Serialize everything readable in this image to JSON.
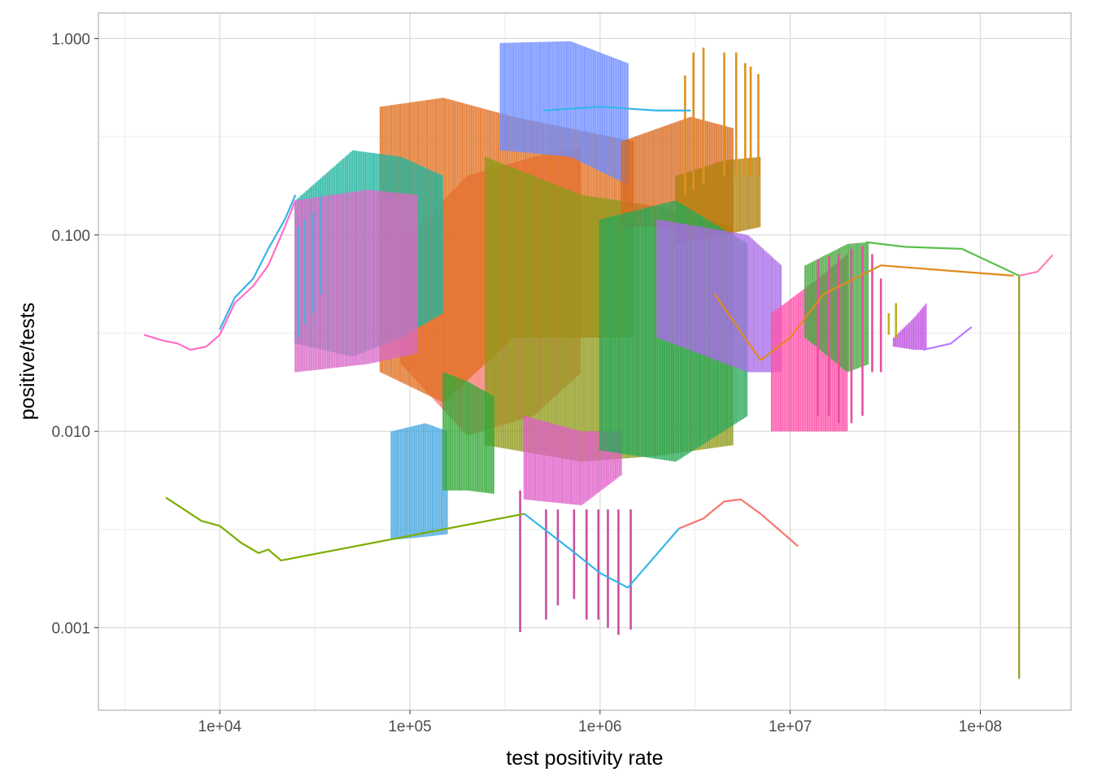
{
  "chart_data": {
    "type": "line",
    "xlabel": "test positivity rate",
    "ylabel": "positive/tests",
    "x_scale": "log10",
    "y_scale": "log10",
    "xlim": [
      2300,
      300000000
    ],
    "ylim": [
      0.00038,
      1.35
    ],
    "x_ticks": [
      10000,
      100000,
      1000000,
      10000000,
      100000000
    ],
    "x_tick_labels": [
      "1e+04",
      "1e+05",
      "1e+06",
      "1e+07",
      "1e+08"
    ],
    "y_ticks": [
      0.001,
      0.01,
      0.1,
      1
    ],
    "y_tick_labels": [
      "0.001",
      "0.010",
      "0.100",
      "1.000"
    ],
    "grid": true,
    "legend": "none",
    "colors": {
      "panel_border": "#b3b3b3",
      "grid_major": "#d9d9d9",
      "grid_minor": "#ececec",
      "tick_text": "#4d4d4d"
    },
    "series": [
      {
        "color": "#ff6ec7",
        "points": [
          [
            4000,
            0.031
          ],
          [
            5000,
            0.029
          ],
          [
            6000,
            0.028
          ],
          [
            7000,
            0.026
          ],
          [
            8500,
            0.027
          ],
          [
            10000,
            0.031
          ],
          [
            12000,
            0.045
          ],
          [
            15000,
            0.055
          ],
          [
            18000,
            0.07
          ],
          [
            22000,
            0.11
          ],
          [
            25000,
            0.15
          ]
        ]
      },
      {
        "color": "#35b6e8",
        "points": [
          [
            10000,
            0.033
          ],
          [
            12000,
            0.048
          ],
          [
            15000,
            0.06
          ],
          [
            18000,
            0.085
          ],
          [
            22000,
            0.12
          ],
          [
            25000,
            0.16
          ]
        ]
      },
      {
        "color": "#7cae00",
        "points": [
          [
            5200,
            0.0046
          ],
          [
            6000,
            0.0042
          ],
          [
            8000,
            0.0035
          ],
          [
            10000,
            0.0033
          ],
          [
            13000,
            0.0027
          ],
          [
            16000,
            0.0024
          ],
          [
            18000,
            0.0025
          ],
          [
            21000,
            0.0022
          ],
          [
            400000,
            0.0038
          ]
        ]
      },
      {
        "color": "#35b6e8",
        "points": [
          [
            400000,
            0.0038
          ],
          [
            700000,
            0.0025
          ],
          [
            1000000,
            0.0019
          ],
          [
            1400000,
            0.0016
          ],
          [
            2600000,
            0.0032
          ]
        ]
      },
      {
        "color": "#f8766d",
        "points": [
          [
            2600000,
            0.0032
          ],
          [
            3500000,
            0.0036
          ],
          [
            4500000,
            0.0044
          ],
          [
            5500000,
            0.0045
          ],
          [
            7000000,
            0.0038
          ],
          [
            11000000,
            0.0026
          ]
        ]
      },
      {
        "color": "#35b6e8",
        "points": [
          [
            500000,
            0.43
          ],
          [
            1000000,
            0.45
          ],
          [
            2000000,
            0.43
          ],
          [
            3000000,
            0.43
          ]
        ]
      },
      {
        "color": "#5bbf4e",
        "points": [
          [
            25000000,
            0.092
          ],
          [
            40000000,
            0.087
          ],
          [
            80000000,
            0.085
          ],
          [
            160000000,
            0.062
          ]
        ]
      },
      {
        "color": "#ff80b8",
        "points": [
          [
            160000000,
            0.062
          ],
          [
            200000000,
            0.065
          ],
          [
            240000000,
            0.079
          ]
        ]
      },
      {
        "color": "#b57cff",
        "points": [
          [
            50000000,
            0.026
          ],
          [
            70000000,
            0.028
          ],
          [
            90000000,
            0.034
          ]
        ]
      },
      {
        "color": "#e08b20",
        "points": [
          [
            4000000,
            0.05
          ],
          [
            7000000,
            0.023
          ],
          [
            10000000,
            0.03
          ],
          [
            15000000,
            0.05
          ],
          [
            30000000,
            0.07
          ],
          [
            80000000,
            0.065
          ],
          [
            150000000,
            0.062
          ]
        ]
      },
      {
        "color": "#9a9a1e",
        "points": [
          [
            160000000,
            0.062
          ],
          [
            160000000,
            0.00055
          ]
        ]
      },
      {
        "color": "#f8766d",
        "band": true,
        "points": [
          [
            90000,
            0.022,
            0.09
          ],
          [
            200000,
            0.0095,
            0.2
          ],
          [
            450000,
            0.012,
            0.25
          ],
          [
            800000,
            0.02,
            0.28
          ]
        ]
      },
      {
        "color": "#e07020",
        "band": true,
        "points": [
          [
            70000,
            0.02,
            0.45
          ],
          [
            150000,
            0.014,
            0.5
          ],
          [
            350000,
            0.03,
            0.4
          ],
          [
            1500000,
            0.03,
            0.3
          ]
        ]
      },
      {
        "color": "#8f9a1a",
        "band": true,
        "points": [
          [
            250000,
            0.0085,
            0.25
          ],
          [
            800000,
            0.007,
            0.16
          ],
          [
            2000000,
            0.0075,
            0.14
          ],
          [
            5000000,
            0.0085,
            0.11
          ]
        ]
      },
      {
        "color": "#6f8cff",
        "band": true,
        "points": [
          [
            300000,
            0.27,
            0.95
          ],
          [
            700000,
            0.25,
            0.97
          ],
          [
            1400000,
            0.18,
            0.75
          ]
        ]
      },
      {
        "color": "#22b5a0",
        "band": true,
        "points": [
          [
            25000,
            0.028,
            0.15
          ],
          [
            50000,
            0.024,
            0.27
          ],
          [
            90000,
            0.03,
            0.25
          ],
          [
            150000,
            0.04,
            0.2
          ]
        ]
      },
      {
        "color": "#d86ac8",
        "band": true,
        "points": [
          [
            25000,
            0.02,
            0.15
          ],
          [
            60000,
            0.022,
            0.17
          ],
          [
            110000,
            0.025,
            0.16
          ]
        ]
      },
      {
        "color": "#45a7e0",
        "band": true,
        "points": [
          [
            80000,
            0.0028,
            0.01
          ],
          [
            120000,
            0.0029,
            0.011
          ],
          [
            160000,
            0.003,
            0.01
          ]
        ]
      },
      {
        "color": "#35a838",
        "band": true,
        "points": [
          [
            150000,
            0.005,
            0.02
          ],
          [
            200000,
            0.005,
            0.018
          ],
          [
            280000,
            0.0048,
            0.015
          ]
        ]
      },
      {
        "color": "#e060c8",
        "band": true,
        "points": [
          [
            400000,
            0.0045,
            0.012
          ],
          [
            800000,
            0.0042,
            0.01
          ],
          [
            1300000,
            0.006,
            0.01
          ]
        ]
      },
      {
        "color": "#d96a20",
        "band": true,
        "points": [
          [
            1300000,
            0.11,
            0.3
          ],
          [
            3000000,
            0.11,
            0.4
          ],
          [
            5000000,
            0.1,
            0.35
          ]
        ]
      },
      {
        "color": "#b0800a",
        "band": true,
        "points": [
          [
            2500000,
            0.09,
            0.2
          ],
          [
            4500000,
            0.1,
            0.24
          ],
          [
            7000000,
            0.11,
            0.25
          ]
        ]
      },
      {
        "color": "#28a858",
        "band": true,
        "points": [
          [
            1000000,
            0.008,
            0.12
          ],
          [
            2500000,
            0.007,
            0.15
          ],
          [
            6000000,
            0.012,
            0.09
          ]
        ]
      },
      {
        "color": "#a86be8",
        "band": true,
        "points": [
          [
            2000000,
            0.03,
            0.12
          ],
          [
            6000000,
            0.02,
            0.1
          ],
          [
            9000000,
            0.02,
            0.07
          ]
        ]
      },
      {
        "color": "#ff4ea8",
        "band": true,
        "points": [
          [
            8000000,
            0.01,
            0.04
          ],
          [
            14000000,
            0.01,
            0.06
          ],
          [
            20000000,
            0.01,
            0.08
          ]
        ]
      },
      {
        "color": "#46a840",
        "band": true,
        "points": [
          [
            12000000,
            0.03,
            0.07
          ],
          [
            20000000,
            0.02,
            0.09
          ],
          [
            26000000,
            0.022,
            0.092
          ]
        ]
      },
      {
        "color": "#c050e0",
        "band": true,
        "points": [
          [
            35000000,
            0.027,
            0.03
          ],
          [
            45000000,
            0.026,
            0.038
          ],
          [
            52000000,
            0.026,
            0.045
          ]
        ]
      },
      {
        "color": "#e09020",
        "spikes": true,
        "points": [
          [
            2800000,
            0.16,
            0.65
          ],
          [
            3100000,
            0.17,
            0.85
          ],
          [
            3500000,
            0.18,
            0.9
          ],
          [
            4500000,
            0.2,
            0.85
          ],
          [
            5200000,
            0.2,
            0.85
          ],
          [
            5800000,
            0.2,
            0.75
          ],
          [
            6200000,
            0.2,
            0.72
          ],
          [
            6800000,
            0.2,
            0.66
          ]
        ]
      },
      {
        "color": "#c84fa0",
        "spikes": true,
        "points": [
          [
            380000,
            0.00095,
            0.005
          ],
          [
            520000,
            0.0011,
            0.004
          ],
          [
            600000,
            0.0013,
            0.004
          ],
          [
            730000,
            0.0014,
            0.004
          ],
          [
            850000,
            0.0011,
            0.004
          ],
          [
            980000,
            0.0011,
            0.004
          ],
          [
            1100000,
            0.001,
            0.004
          ],
          [
            1250000,
            0.00092,
            0.004
          ],
          [
            1450000,
            0.00098,
            0.004
          ]
        ]
      },
      {
        "color": "#5aa8d8",
        "spikes": true,
        "points": [
          [
            26000,
            0.03,
            0.11
          ],
          [
            28000,
            0.035,
            0.12
          ],
          [
            31000,
            0.04,
            0.13
          ],
          [
            34000,
            0.05,
            0.16
          ]
        ]
      },
      {
        "color": "#c0b020",
        "spikes": true,
        "points": [
          [
            30000000,
            0.032,
            0.036
          ],
          [
            33000000,
            0.031,
            0.04
          ],
          [
            36000000,
            0.03,
            0.045
          ]
        ]
      },
      {
        "color": "#e84fa0",
        "spikes": true,
        "points": [
          [
            14000000,
            0.012,
            0.075
          ],
          [
            16000000,
            0.012,
            0.078
          ],
          [
            18000000,
            0.011,
            0.08
          ],
          [
            21000000,
            0.011,
            0.085
          ],
          [
            24000000,
            0.012,
            0.088
          ],
          [
            27000000,
            0.02,
            0.08
          ],
          [
            30000000,
            0.02,
            0.06
          ]
        ]
      }
    ]
  }
}
